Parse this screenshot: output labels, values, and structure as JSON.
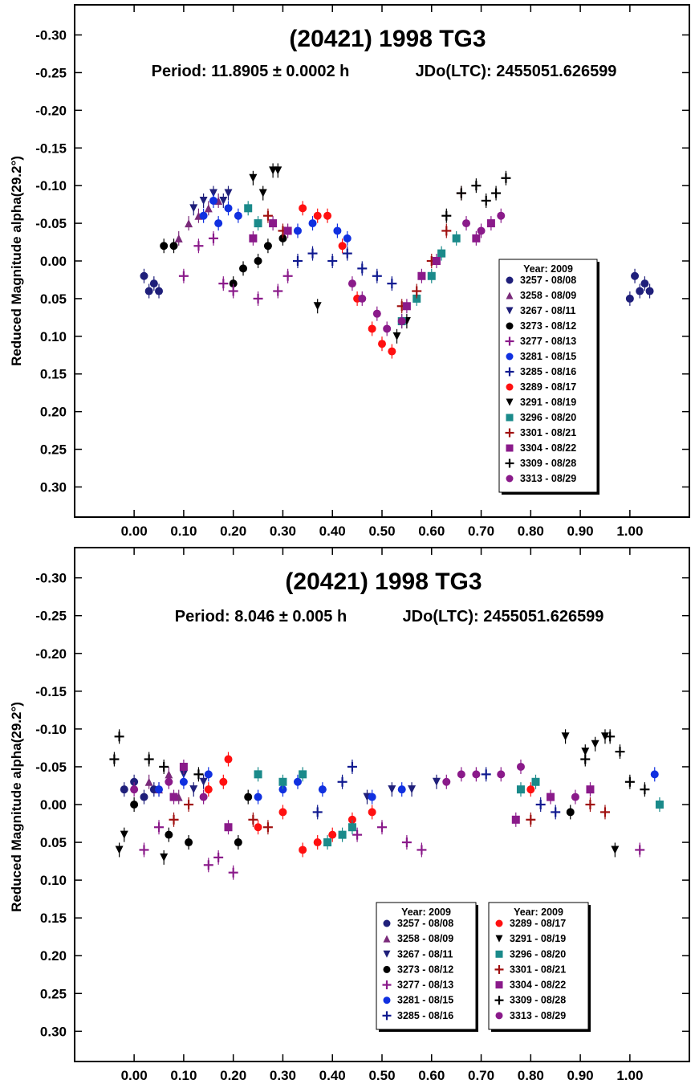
{
  "chart_data": [
    {
      "type": "scatter",
      "title": "(20421) 1998 TG3",
      "period_text": "Period: 11.8905 ± 0.0002 h",
      "jdo_text": "JDo(LTC): 2455051.626599",
      "xlabel": "",
      "ylabel": "Reduced Magnitude alpha(29.2°)",
      "xlim": [
        -0.12,
        1.12
      ],
      "ylim": [
        -0.34,
        0.34
      ],
      "y_inverted": true,
      "grid": false,
      "legend_position": "bottom-right",
      "x_ticks": [
        "0.00",
        "0.10",
        "0.20",
        "0.30",
        "0.40",
        "0.50",
        "0.60",
        "0.70",
        "0.80",
        "0.90",
        "1.00"
      ],
      "y_ticks": [
        "-0.30",
        "-0.25",
        "-0.20",
        "-0.15",
        "-0.10",
        "-0.05",
        "0.00",
        "0.05",
        "0.10",
        "0.15",
        "0.20",
        "0.25",
        "0.30"
      ],
      "legend_columns": [
        {
          "header": "Year: 2009",
          "entries": [
            {
              "name": "3257 - 08/08",
              "marker": "circle",
              "color": "#1f1f7a"
            },
            {
              "name": "3258 - 08/09",
              "marker": "triangle-up",
              "color": "#7a2a7a"
            },
            {
              "name": "3267 - 08/11",
              "marker": "triangle-down",
              "color": "#1f1f7a"
            },
            {
              "name": "3273 - 08/12",
              "marker": "circle",
              "color": "#000000"
            },
            {
              "name": "3277 - 08/13",
              "marker": "plus",
              "color": "#8a1a8a"
            },
            {
              "name": "3281 - 08/15",
              "marker": "circle",
              "color": "#1030e0"
            },
            {
              "name": "3285 - 08/16",
              "marker": "plus",
              "color": "#101a90"
            },
            {
              "name": "3289 - 08/17",
              "marker": "circle",
              "color": "#ff1010"
            },
            {
              "name": "3291 - 08/19",
              "marker": "triangle-down",
              "color": "#000000"
            },
            {
              "name": "3296 - 08/20",
              "marker": "square",
              "color": "#1a8a8a"
            },
            {
              "name": "3301 - 08/21",
              "marker": "plus",
              "color": "#a01010"
            },
            {
              "name": "3304 - 08/22",
              "marker": "square",
              "color": "#8a1a8a"
            },
            {
              "name": "3309 - 08/28",
              "marker": "plus",
              "color": "#000000"
            },
            {
              "name": "3313 - 08/29",
              "marker": "circle",
              "color": "#8a1a8a"
            }
          ]
        }
      ],
      "series": [
        {
          "name": "3257 - 08/08",
          "x": [
            0.02,
            0.03,
            0.04,
            0.05,
            1.0,
            1.01,
            1.02,
            1.03,
            1.04
          ],
          "y": [
            0.02,
            0.04,
            0.03,
            0.04,
            0.05,
            0.02,
            0.04,
            0.03,
            0.04
          ]
        },
        {
          "name": "3258 - 08/09",
          "x": [
            0.09,
            0.11,
            0.13,
            0.15,
            0.17
          ],
          "y": [
            -0.03,
            -0.05,
            -0.06,
            -0.07,
            -0.08
          ]
        },
        {
          "name": "3267 - 08/11",
          "x": [
            0.12,
            0.14,
            0.16,
            0.18,
            0.19
          ],
          "y": [
            -0.07,
            -0.08,
            -0.09,
            -0.08,
            -0.09
          ]
        },
        {
          "name": "3273 - 08/12",
          "x": [
            0.06,
            0.08,
            0.2,
            0.22,
            0.25,
            0.27,
            0.3
          ],
          "y": [
            -0.02,
            -0.02,
            0.03,
            0.01,
            0.0,
            -0.02,
            -0.03
          ]
        },
        {
          "name": "3277 - 08/13",
          "x": [
            0.1,
            0.13,
            0.16,
            0.18,
            0.2,
            0.25,
            0.29,
            0.31
          ],
          "y": [
            0.02,
            -0.02,
            -0.03,
            0.03,
            0.04,
            0.05,
            0.04,
            0.02
          ]
        },
        {
          "name": "3281 - 08/15",
          "x": [
            0.14,
            0.16,
            0.17,
            0.19,
            0.21,
            0.33,
            0.36,
            0.41,
            0.43
          ],
          "y": [
            -0.06,
            -0.08,
            -0.05,
            -0.07,
            -0.06,
            -0.04,
            -0.05,
            -0.04,
            -0.03
          ]
        },
        {
          "name": "3285 - 08/16",
          "x": [
            0.33,
            0.36,
            0.4,
            0.43,
            0.46,
            0.49,
            0.52
          ],
          "y": [
            0.0,
            -0.01,
            0.0,
            -0.01,
            0.01,
            0.02,
            0.03
          ]
        },
        {
          "name": "3289 - 08/17",
          "x": [
            0.34,
            0.37,
            0.39,
            0.42,
            0.45,
            0.48,
            0.5,
            0.52
          ],
          "y": [
            -0.07,
            -0.06,
            -0.06,
            -0.02,
            0.05,
            0.09,
            0.11,
            0.12
          ]
        },
        {
          "name": "3291 - 08/19",
          "x": [
            0.24,
            0.26,
            0.28,
            0.29,
            0.37,
            0.53,
            0.55
          ],
          "y": [
            -0.11,
            -0.09,
            -0.12,
            -0.12,
            0.06,
            0.1,
            0.08
          ]
        },
        {
          "name": "3296 - 08/20",
          "x": [
            0.23,
            0.25,
            0.54,
            0.57,
            0.6,
            0.62,
            0.65
          ],
          "y": [
            -0.07,
            -0.05,
            0.08,
            0.05,
            0.02,
            -0.01,
            -0.03
          ]
        },
        {
          "name": "3301 - 08/21",
          "x": [
            0.27,
            0.3,
            0.54,
            0.57,
            0.6,
            0.63,
            0.66
          ],
          "y": [
            -0.06,
            -0.04,
            0.06,
            0.04,
            0.0,
            -0.04,
            -0.09
          ]
        },
        {
          "name": "3304 - 08/22",
          "x": [
            0.24,
            0.28,
            0.31,
            0.55,
            0.58,
            0.61,
            0.69,
            0.72
          ],
          "y": [
            -0.03,
            -0.05,
            -0.04,
            0.06,
            0.02,
            0.0,
            -0.03,
            -0.05
          ]
        },
        {
          "name": "3309 - 08/28",
          "x": [
            0.63,
            0.66,
            0.69,
            0.71,
            0.73,
            0.75
          ],
          "y": [
            -0.06,
            -0.09,
            -0.1,
            -0.08,
            -0.09,
            -0.11
          ]
        },
        {
          "name": "3313 - 08/29",
          "x": [
            0.44,
            0.46,
            0.49,
            0.51,
            0.54,
            0.67,
            0.7,
            0.74
          ],
          "y": [
            0.03,
            0.05,
            0.07,
            0.09,
            0.08,
            -0.05,
            -0.04,
            -0.06
          ]
        }
      ]
    },
    {
      "type": "scatter",
      "title": "(20421) 1998 TG3",
      "period_text": "Period: 8.046 ± 0.005 h",
      "jdo_text": "JDo(LTC): 2455051.626599",
      "xlabel": "",
      "ylabel": "Reduced Magnitude alpha(29.2°)",
      "xlim": [
        -0.12,
        1.12
      ],
      "ylim": [
        -0.34,
        0.34
      ],
      "y_inverted": true,
      "grid": false,
      "legend_position": "bottom-right",
      "x_ticks": [
        "0.00",
        "0.10",
        "0.20",
        "0.30",
        "0.40",
        "0.50",
        "0.60",
        "0.70",
        "0.80",
        "0.90",
        "1.00"
      ],
      "y_ticks": [
        "-0.30",
        "-0.25",
        "-0.20",
        "-0.15",
        "-0.10",
        "-0.05",
        "0.00",
        "0.05",
        "0.10",
        "0.15",
        "0.20",
        "0.25",
        "0.30"
      ],
      "legend_columns": [
        {
          "header": "Year: 2009",
          "entries": [
            {
              "name": "3257 - 08/08",
              "marker": "circle",
              "color": "#1f1f7a"
            },
            {
              "name": "3258 - 08/09",
              "marker": "triangle-up",
              "color": "#7a2a7a"
            },
            {
              "name": "3267 - 08/11",
              "marker": "triangle-down",
              "color": "#1f1f7a"
            },
            {
              "name": "3273 - 08/12",
              "marker": "circle",
              "color": "#000000"
            },
            {
              "name": "3277 - 08/13",
              "marker": "plus",
              "color": "#8a1a8a"
            },
            {
              "name": "3281 - 08/15",
              "marker": "circle",
              "color": "#1030e0"
            },
            {
              "name": "3285 - 08/16",
              "marker": "plus",
              "color": "#101a90"
            }
          ]
        },
        {
          "header": "Year: 2009",
          "entries": [
            {
              "name": "3289 - 08/17",
              "marker": "circle",
              "color": "#ff1010"
            },
            {
              "name": "3291 - 08/19",
              "marker": "triangle-down",
              "color": "#000000"
            },
            {
              "name": "3296 - 08/20",
              "marker": "square",
              "color": "#1a8a8a"
            },
            {
              "name": "3301 - 08/21",
              "marker": "plus",
              "color": "#a01010"
            },
            {
              "name": "3304 - 08/22",
              "marker": "square",
              "color": "#8a1a8a"
            },
            {
              "name": "3309 - 08/28",
              "marker": "plus",
              "color": "#000000"
            },
            {
              "name": "3313 - 08/29",
              "marker": "circle",
              "color": "#8a1a8a"
            }
          ]
        }
      ],
      "series": [
        {
          "name": "3257 - 08/08",
          "x": [
            -0.02,
            0.0,
            0.02,
            0.04
          ],
          "y": [
            -0.02,
            -0.03,
            -0.01,
            -0.02
          ]
        },
        {
          "name": "3258 - 08/09",
          "x": [
            0.03,
            0.05,
            0.07,
            0.09
          ],
          "y": [
            -0.03,
            -0.02,
            -0.04,
            -0.01
          ]
        },
        {
          "name": "3267 - 08/11",
          "x": [
            0.1,
            0.12,
            0.14,
            0.47,
            0.52,
            0.56,
            0.61
          ],
          "y": [
            -0.04,
            -0.02,
            -0.03,
            -0.01,
            -0.02,
            -0.02,
            -0.03
          ]
        },
        {
          "name": "3273 - 08/12",
          "x": [
            0.0,
            0.07,
            0.11,
            0.21,
            0.23,
            0.88
          ],
          "y": [
            0.0,
            0.04,
            0.05,
            0.05,
            -0.01,
            0.01
          ]
        },
        {
          "name": "3277 - 08/13",
          "x": [
            0.02,
            0.05,
            0.15,
            0.17,
            0.2,
            0.45,
            0.5,
            0.55,
            0.58,
            1.02
          ],
          "y": [
            0.06,
            0.03,
            0.08,
            0.07,
            0.09,
            0.04,
            0.03,
            0.05,
            0.06,
            0.06
          ]
        },
        {
          "name": "3281 - 08/15",
          "x": [
            0.05,
            0.1,
            0.15,
            0.25,
            0.3,
            0.33,
            0.38,
            0.48,
            0.54,
            1.05
          ],
          "y": [
            -0.02,
            -0.03,
            -0.04,
            -0.01,
            -0.02,
            -0.03,
            -0.02,
            -0.01,
            -0.02,
            -0.04
          ]
        },
        {
          "name": "3285 - 08/16",
          "x": [
            0.37,
            0.42,
            0.44,
            0.71,
            0.82,
            0.85
          ],
          "y": [
            0.01,
            -0.03,
            -0.05,
            -0.04,
            0.0,
            0.01
          ]
        },
        {
          "name": "3289 - 08/17",
          "x": [
            0.15,
            0.18,
            0.19,
            0.25,
            0.3,
            0.34,
            0.37,
            0.4,
            0.44,
            0.48,
            0.8
          ],
          "y": [
            -0.02,
            -0.03,
            -0.06,
            0.03,
            0.01,
            0.06,
            0.05,
            0.04,
            0.02,
            0.01,
            -0.02
          ]
        },
        {
          "name": "3291 - 08/19",
          "x": [
            -0.03,
            -0.02,
            0.06,
            0.87,
            0.91,
            0.93,
            0.95,
            0.97
          ],
          "y": [
            0.06,
            0.04,
            0.07,
            -0.09,
            -0.07,
            -0.08,
            -0.09,
            0.06
          ]
        },
        {
          "name": "3296 - 08/20",
          "x": [
            0.25,
            0.3,
            0.34,
            0.39,
            0.42,
            0.44,
            0.78,
            0.81,
            1.06
          ],
          "y": [
            -0.04,
            -0.03,
            -0.04,
            0.05,
            0.04,
            0.03,
            -0.02,
            -0.03,
            0.0
          ]
        },
        {
          "name": "3301 - 08/21",
          "x": [
            0.08,
            0.11,
            0.24,
            0.27,
            0.8,
            0.92,
            0.95
          ],
          "y": [
            0.02,
            0.0,
            0.02,
            0.03,
            0.02,
            0.0,
            0.01
          ]
        },
        {
          "name": "3304 - 08/22",
          "x": [
            0.08,
            0.1,
            0.19,
            0.77,
            0.84,
            0.92
          ],
          "y": [
            -0.01,
            -0.05,
            0.03,
            0.02,
            -0.01,
            -0.02
          ]
        },
        {
          "name": "3309 - 08/28",
          "x": [
            -0.04,
            -0.03,
            0.03,
            0.06,
            0.13,
            0.91,
            0.96,
            0.98,
            1.0,
            1.03
          ],
          "y": [
            -0.06,
            -0.09,
            -0.06,
            -0.05,
            -0.04,
            -0.06,
            -0.09,
            -0.07,
            -0.03,
            -0.02
          ]
        },
        {
          "name": "3313 - 08/29",
          "x": [
            0.0,
            0.07,
            0.14,
            0.63,
            0.66,
            0.69,
            0.74,
            0.78,
            0.89
          ],
          "y": [
            -0.02,
            -0.03,
            -0.01,
            -0.03,
            -0.04,
            -0.04,
            -0.04,
            -0.05,
            -0.01
          ]
        }
      ]
    }
  ]
}
